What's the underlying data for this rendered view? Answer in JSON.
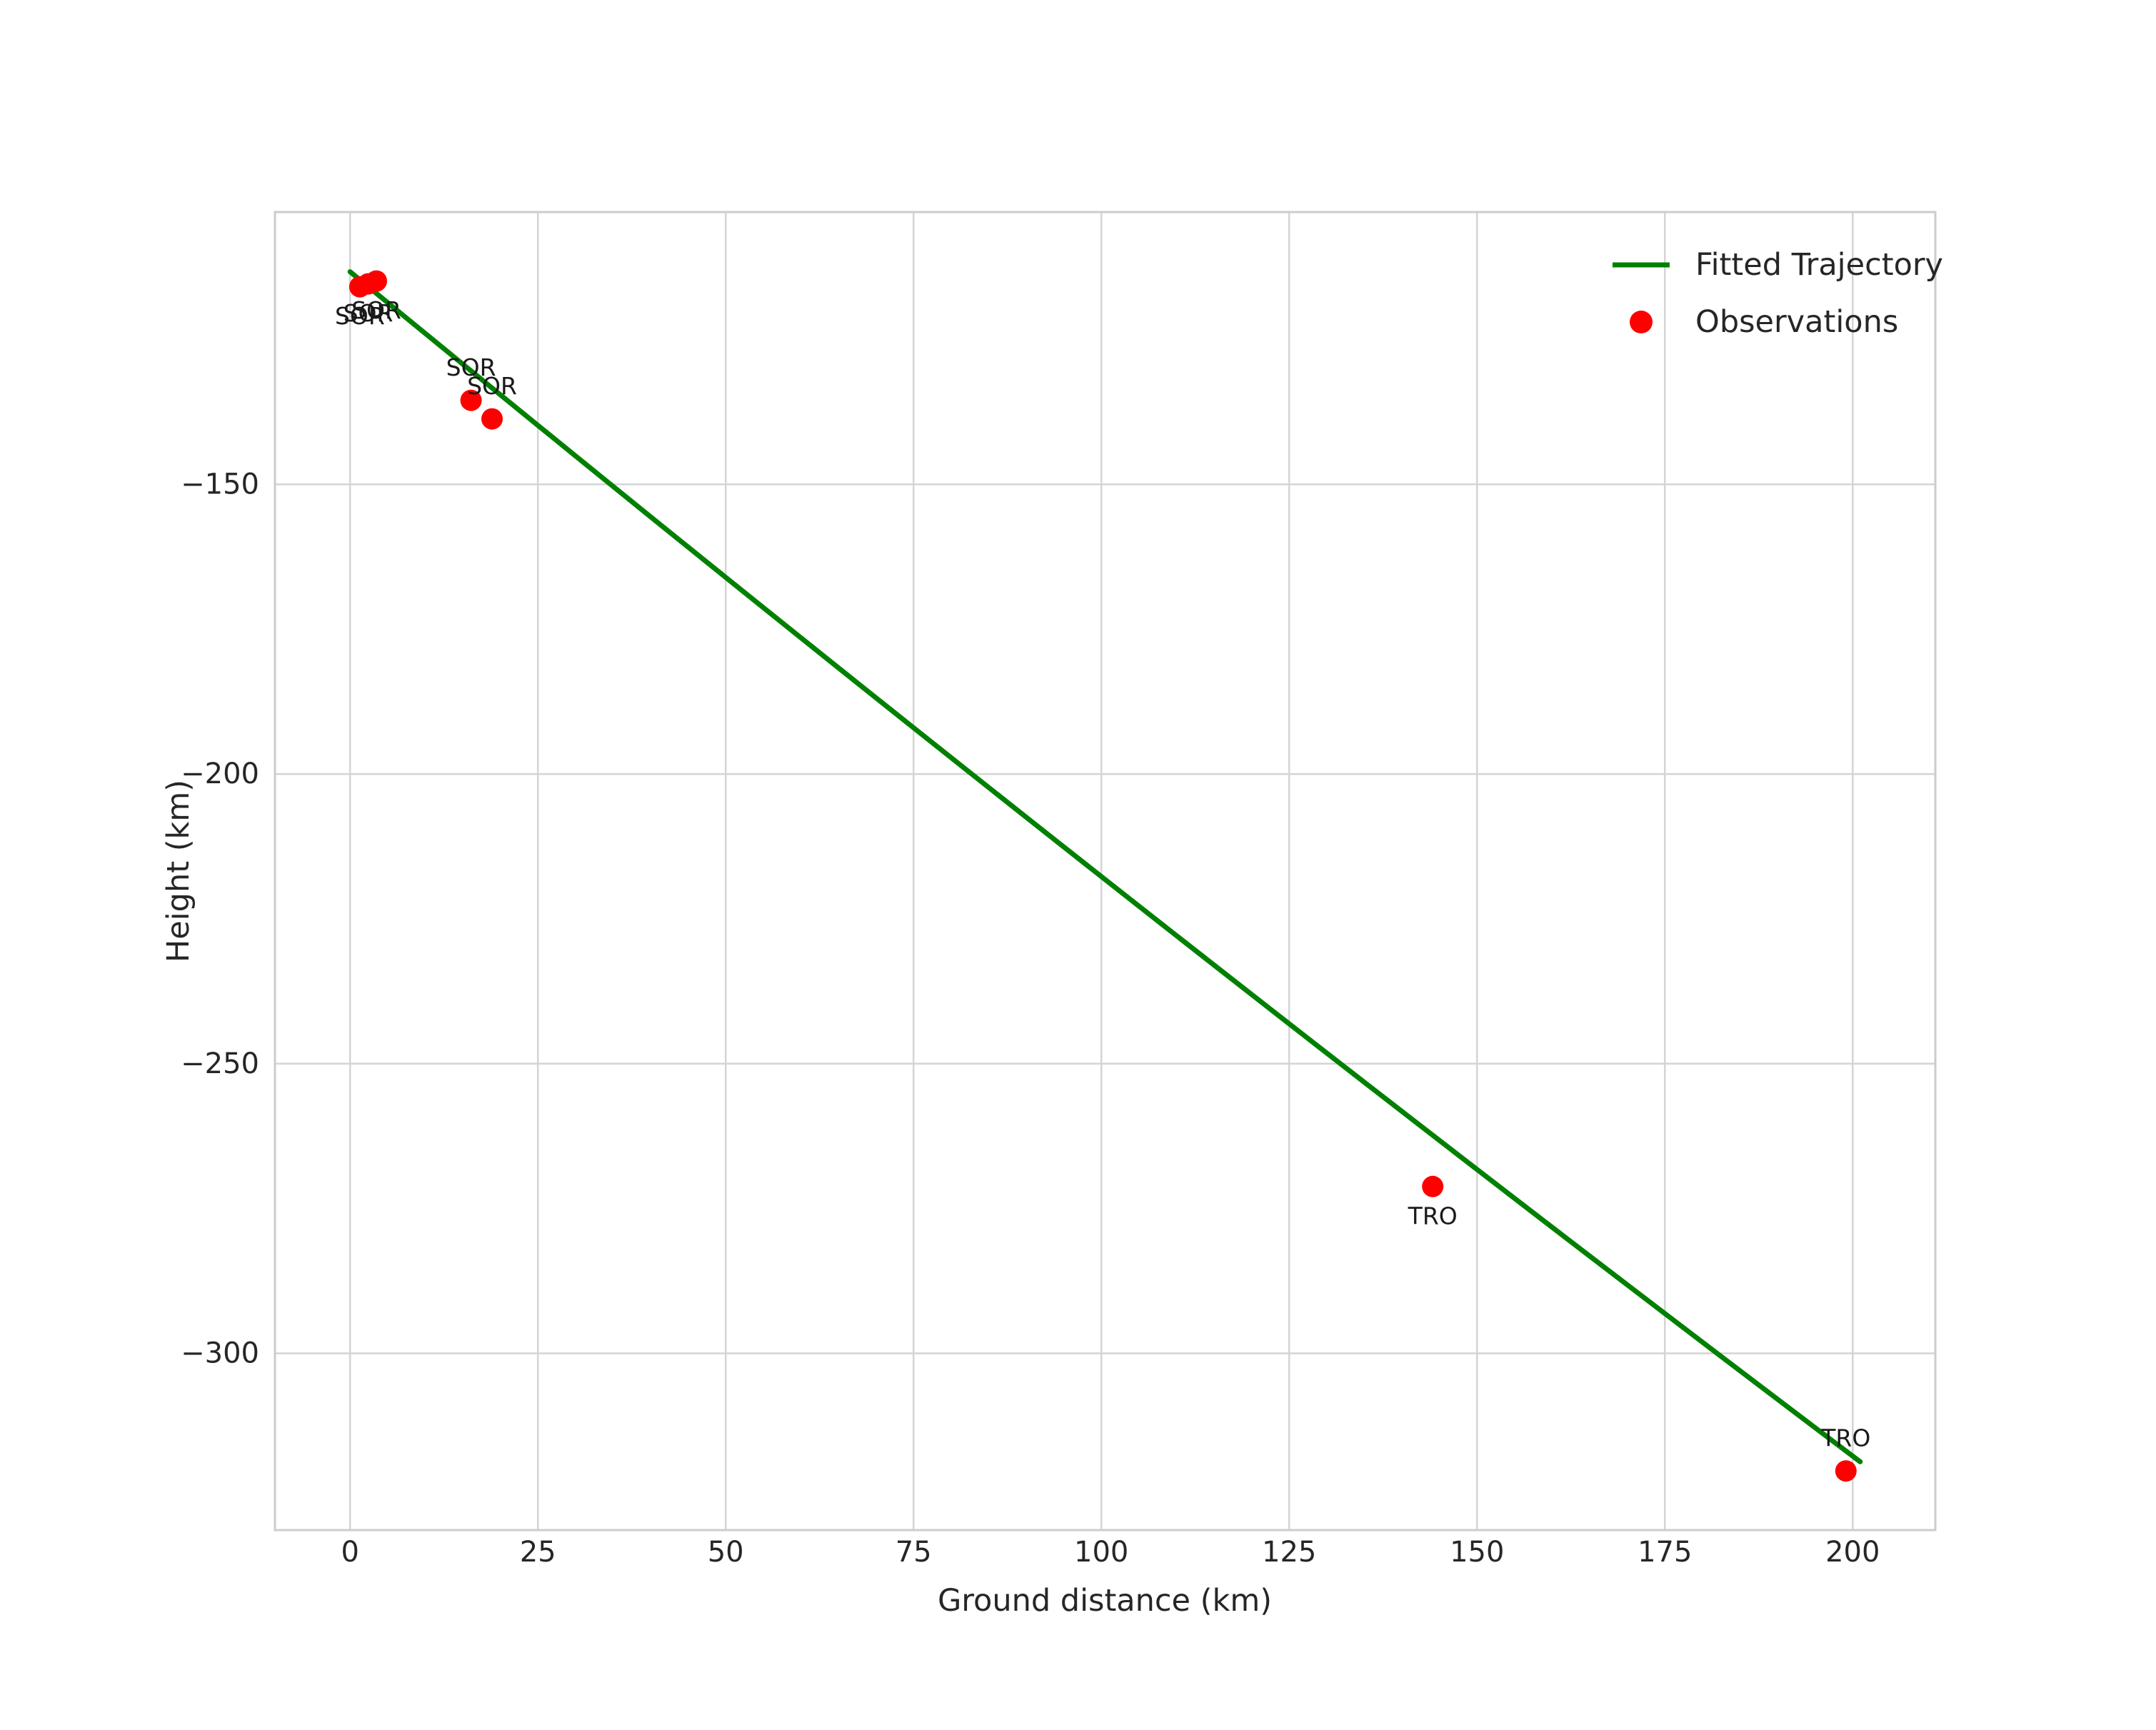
{
  "chart_data": {
    "type": "scatter",
    "title": "",
    "xlabel": "Ground distance (km)",
    "ylabel": "Height (km)",
    "xlim": [
      -10,
      211
    ],
    "ylim": [
      -330.5,
      -103
    ],
    "x_ticks": [
      0,
      25,
      50,
      75,
      100,
      125,
      150,
      175,
      200
    ],
    "x_tick_labels": [
      "0",
      "25",
      "50",
      "75",
      "100",
      "125",
      "150",
      "175",
      "200"
    ],
    "y_ticks": [
      -150,
      -200,
      -250,
      -300
    ],
    "y_tick_labels": [
      "−150",
      "−200",
      "−250",
      "−300"
    ],
    "grid": true,
    "legend_position": "upper right",
    "series": [
      {
        "name": "Fitted Trajectory",
        "type": "line",
        "color": "#008000",
        "curve_points": [
          [
            0.0,
            -113.3
          ],
          [
            100.0,
            -217.7
          ],
          [
            201.0,
            -318.7
          ]
        ]
      },
      {
        "name": "Observations",
        "type": "scatter",
        "color": "#ff0000",
        "points": [
          {
            "x": 1.3,
            "y": -115.9,
            "label": "SOR",
            "label_side": "below"
          },
          {
            "x": 2.4,
            "y": -115.4,
            "label": "SOR",
            "label_side": "below"
          },
          {
            "x": 3.5,
            "y": -114.9,
            "label": "SOR",
            "label_side": "below"
          },
          {
            "x": 16.1,
            "y": -135.5,
            "label": "SOR",
            "label_side": "above"
          },
          {
            "x": 18.9,
            "y": -138.7,
            "label": "SOR",
            "label_side": "above"
          },
          {
            "x": 144.1,
            "y": -271.2,
            "label": "TRO",
            "label_side": "below"
          },
          {
            "x": 199.1,
            "y": -320.3,
            "label": "TRO",
            "label_side": "above"
          }
        ]
      }
    ]
  },
  "colors": {
    "background": "#ffffff",
    "grid": "#d4d4d4",
    "frame": "#cccccc",
    "tick_text": "#262626",
    "annotation_text": "#1a1a1a",
    "trajectory_green": "#008000",
    "observation_red": "#ff0000"
  }
}
